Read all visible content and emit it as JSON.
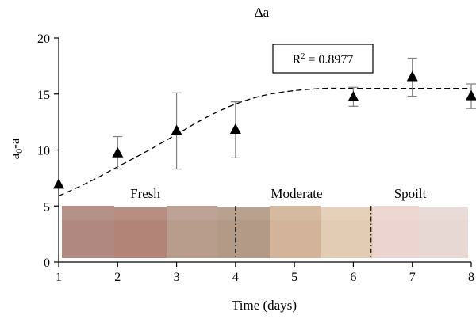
{
  "chart_data": {
    "type": "scatter",
    "title": "Δa",
    "xlabel": "Time (days)",
    "ylabel_main": "a",
    "ylabel_sub": "0",
    "ylabel_tail": "-a",
    "xlim": [
      1,
      8
    ],
    "ylim": [
      0,
      20
    ],
    "xticks": [
      1,
      2,
      3,
      4,
      5,
      6,
      7,
      8
    ],
    "yticks": [
      0,
      5,
      10,
      15,
      20
    ],
    "grid": false,
    "series": [
      {
        "marker": "triangle",
        "x": [
          1,
          2,
          3,
          4,
          6,
          7,
          8
        ],
        "y": [
          6.9,
          9.7,
          11.7,
          11.8,
          14.7,
          16.5,
          14.8
        ],
        "error_low": [
          6.9,
          8.3,
          8.3,
          9.3,
          13.9,
          14.8,
          13.7
        ],
        "error_high": [
          6.9,
          11.2,
          15.1,
          14.3,
          15.6,
          18.2,
          15.9
        ]
      }
    ],
    "fit": {
      "style": "dashed",
      "x": [
        1,
        1.5,
        2,
        2.5,
        3,
        3.5,
        4,
        4.5,
        5,
        5.5,
        6,
        6.5,
        7,
        7.5,
        8
      ],
      "y": [
        5.9,
        7.1,
        8.5,
        9.9,
        11.4,
        12.9,
        14.1,
        14.9,
        15.3,
        15.5,
        15.5,
        15.5,
        15.5,
        15.5,
        15.5
      ]
    },
    "annotation": {
      "r2_prefix": "R",
      "r2_sup": "2",
      "r2_suffix": " = 0.8977"
    },
    "inset": {
      "stage_labels": [
        "Fresh",
        "Moderate",
        "Spoilt"
      ],
      "swatch_colors": [
        "#b08880",
        "#b28478",
        "#b89c8c",
        "#b39a86",
        "#d3b49a",
        "#e3ccb4",
        "#ecd4d0",
        "#e8d8d4"
      ],
      "divider_x": [
        4,
        6.3
      ]
    }
  }
}
